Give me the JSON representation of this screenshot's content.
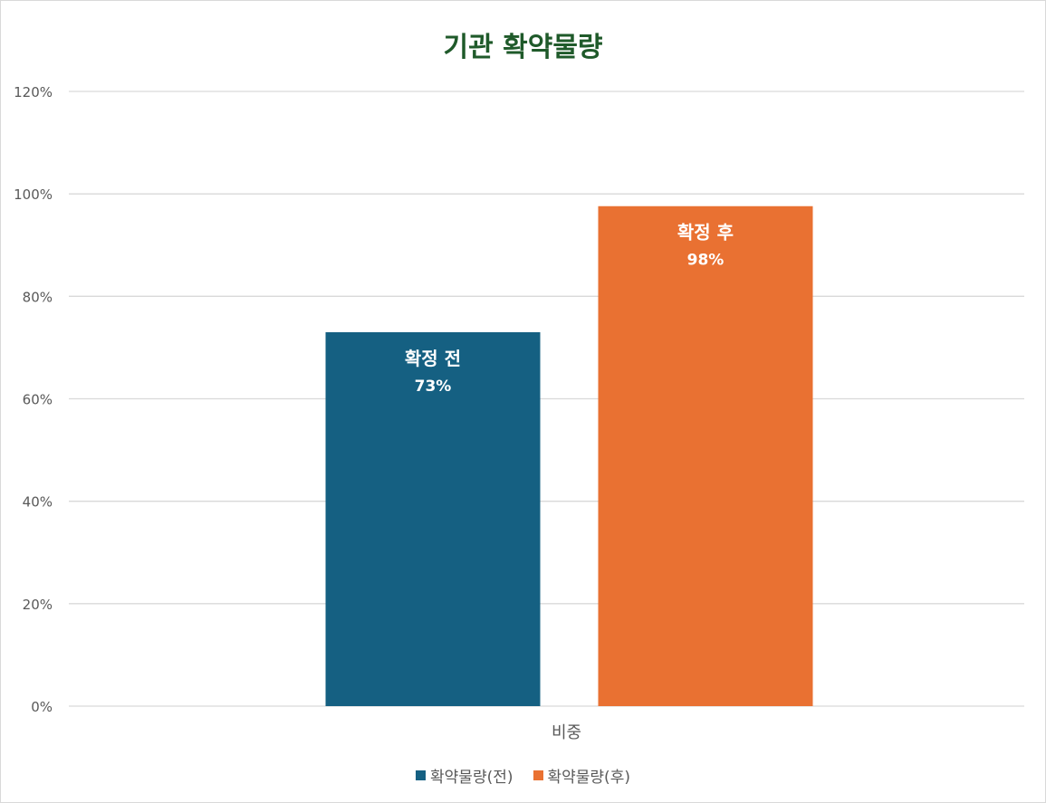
{
  "chart_data": {
    "type": "bar",
    "title": "기관 확약물량",
    "categories": [
      "비중"
    ],
    "ylim": [
      0,
      120
    ],
    "yticks": [
      0,
      20,
      40,
      60,
      80,
      100,
      120
    ],
    "ytick_suffix": "%",
    "grid": true,
    "legend_position": "bottom",
    "series": [
      {
        "name": "확약물량(전)",
        "values": [
          73
        ],
        "label": "확정 전",
        "value_label": "73%",
        "color": "#156082"
      },
      {
        "name": "확약물량(후)",
        "values": [
          97.6
        ],
        "label": "확정 후",
        "value_label": "98%",
        "color": "#e97132"
      }
    ]
  }
}
